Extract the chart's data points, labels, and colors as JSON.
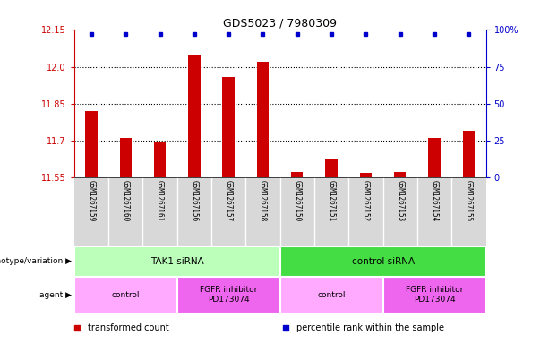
{
  "title": "GDS5023 / 7980309",
  "samples": [
    "GSM1267159",
    "GSM1267160",
    "GSM1267161",
    "GSM1267156",
    "GSM1267157",
    "GSM1267158",
    "GSM1267150",
    "GSM1267151",
    "GSM1267152",
    "GSM1267153",
    "GSM1267154",
    "GSM1267155"
  ],
  "bar_values": [
    11.82,
    11.71,
    11.695,
    12.05,
    11.96,
    12.02,
    11.573,
    11.625,
    11.57,
    11.573,
    11.71,
    11.74
  ],
  "ylim_left": [
    11.55,
    12.15
  ],
  "ylim_right": [
    0,
    100
  ],
  "yticks_left": [
    11.55,
    11.7,
    11.85,
    12.0,
    12.15
  ],
  "yticks_right": [
    0,
    25,
    50,
    75,
    100
  ],
  "bar_color": "#cc0000",
  "percentile_color": "#0000cc",
  "genotype_groups": [
    {
      "label": "TAK1 siRNA",
      "start": 0,
      "end": 6,
      "color": "#bbffbb"
    },
    {
      "label": "control siRNA",
      "start": 6,
      "end": 12,
      "color": "#44dd44"
    }
  ],
  "agent_groups": [
    {
      "label": "control",
      "start": 0,
      "end": 3,
      "color": "#ffaaff"
    },
    {
      "label": "FGFR inhibitor\nPD173074",
      "start": 3,
      "end": 6,
      "color": "#ee66ee"
    },
    {
      "label": "control",
      "start": 6,
      "end": 9,
      "color": "#ffaaff"
    },
    {
      "label": "FGFR inhibitor\nPD173074",
      "start": 9,
      "end": 12,
      "color": "#ee66ee"
    }
  ],
  "legend_items": [
    {
      "label": "transformed count",
      "color": "#cc0000"
    },
    {
      "label": "percentile rank within the sample",
      "color": "#0000cc"
    }
  ],
  "genotype_label": "genotype/variation",
  "agent_label": "agent",
  "bar_width": 0.35,
  "dotted_lines": [
    11.7,
    11.85,
    12.0
  ],
  "background_color": "#ffffff",
  "sample_bg_color": "#d8d8d8",
  "chart_bg_color": "#ffffff"
}
